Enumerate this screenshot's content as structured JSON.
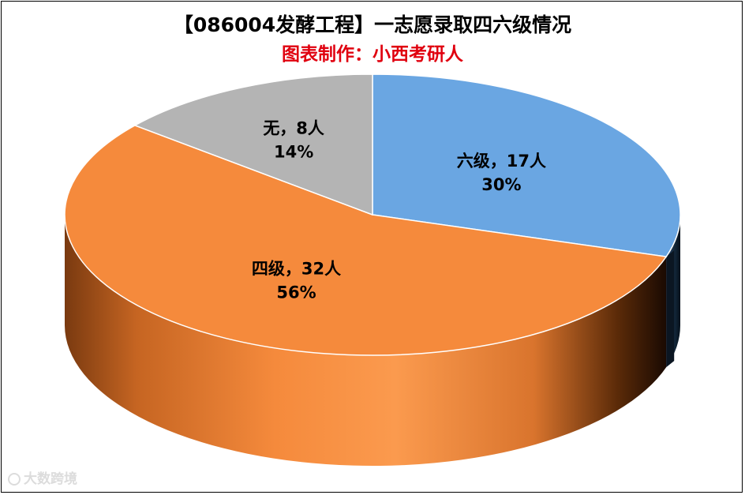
{
  "title": "【086004发酵工程】一志愿录取四六级情况",
  "subtitle": "图表制作：小西考研人",
  "watermark": "大数跨境",
  "colors": {
    "六级": "#6aa6e2",
    "四级": "#f58a3c",
    "无": "#b4b4b4",
    "subtitle": "#e0000f"
  },
  "chart_data": {
    "type": "pie",
    "title": "【086004发酵工程】一志愿录取四六级情况",
    "subtitle": "图表制作：小西考研人",
    "slices": [
      {
        "name": "六级",
        "count": 17,
        "percent": 30,
        "line1": "六级，17人",
        "line2": "30%"
      },
      {
        "name": "四级",
        "count": 32,
        "percent": 56,
        "line1": "四级，32人",
        "line2": "56%"
      },
      {
        "name": "无",
        "count": 8,
        "percent": 14,
        "line1": "无，8人",
        "line2": "14%"
      }
    ]
  }
}
